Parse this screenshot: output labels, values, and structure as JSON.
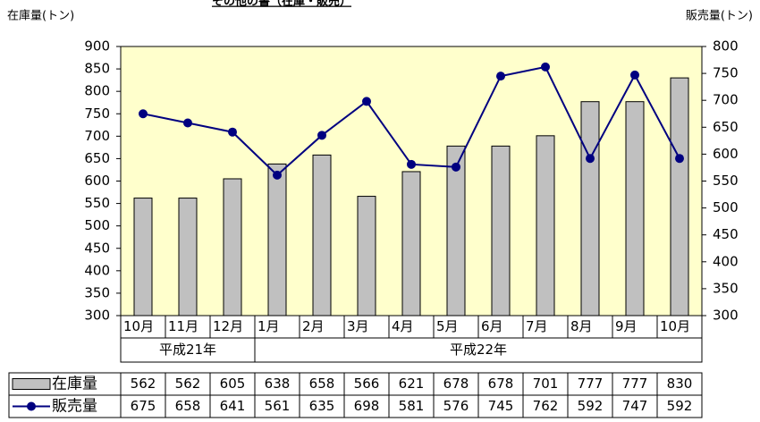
{
  "chart_data": {
    "type": "bar_line",
    "title": "その他の書（在庫・販売）",
    "y_label": "在庫量(トン)",
    "y2_label": "販売量(トン)",
    "categories": [
      "10月",
      "11月",
      "12月",
      "1月",
      "2月",
      "3月",
      "4月",
      "5月",
      "6月",
      "7月",
      "8月",
      "9月",
      "10月"
    ],
    "groups": [
      {
        "label": "平成21年",
        "span": 3
      },
      {
        "label": "平成22年",
        "span": 10
      }
    ],
    "series": [
      {
        "name": "在庫量",
        "type": "bar",
        "color": "#c0c0c0",
        "values": [
          562,
          562,
          605,
          638,
          658,
          566,
          621,
          678,
          678,
          701,
          777,
          777,
          830
        ]
      },
      {
        "name": "販売量",
        "type": "line",
        "axis": "y2",
        "color": "#000080",
        "values": [
          675,
          658,
          641,
          561,
          635,
          698,
          581,
          576,
          745,
          762,
          592,
          747,
          592
        ]
      }
    ],
    "ylim": [
      300,
      900
    ],
    "yticks": [
      300,
      350,
      400,
      450,
      500,
      550,
      600,
      650,
      700,
      750,
      800,
      850,
      900
    ],
    "y2lim": [
      300,
      800
    ],
    "y2ticks": [
      300,
      350,
      400,
      450,
      500,
      550,
      600,
      650,
      700,
      750,
      800
    ],
    "background": "#ffffcc"
  }
}
